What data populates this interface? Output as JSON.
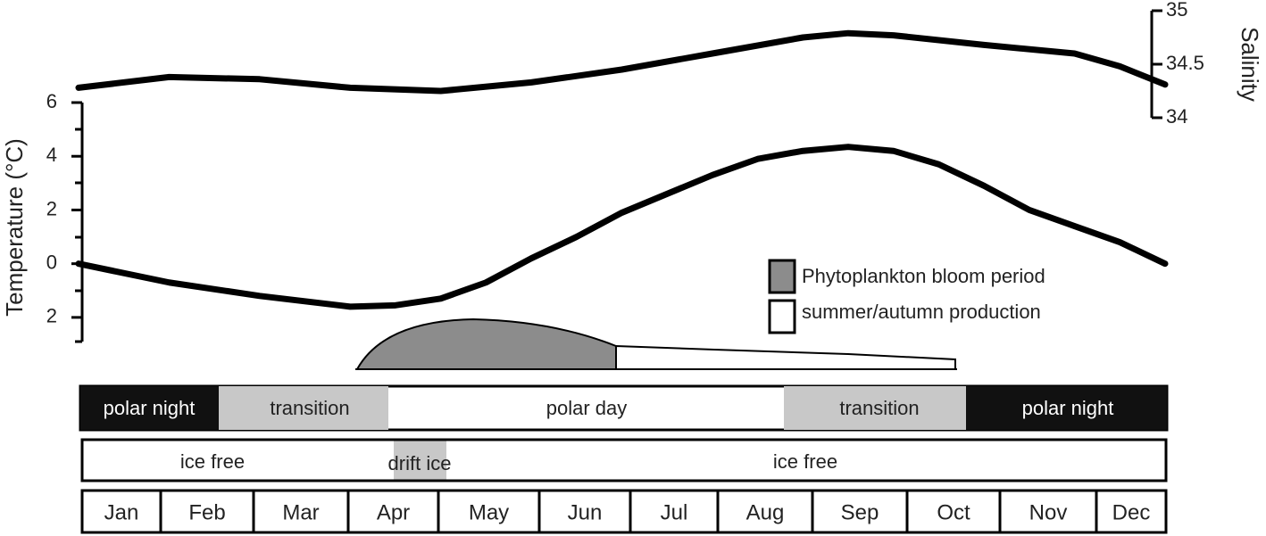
{
  "chart_data": {
    "type": "line",
    "ylabel": "Temperature (°C)",
    "y2label": "Salinity",
    "ylim": [
      -2.9,
      6
    ],
    "yticks": [
      6,
      4,
      2,
      0,
      {
        "value": -2,
        "label": "2"
      }
    ],
    "y2lim": [
      34,
      35
    ],
    "y2ticks": [
      35,
      34.5,
      34
    ],
    "categories": [
      "Jan",
      "Feb",
      "Mar",
      "Apr",
      "May",
      "Jun",
      "Jul",
      "Aug",
      "Sep",
      "Oct",
      "Nov",
      "Dec"
    ],
    "series": [
      {
        "name": "Temperature",
        "color": "#000000",
        "x": [
          0,
          1,
          2,
          3,
          3.5,
          4,
          4.5,
          5,
          5.5,
          6,
          6.5,
          7,
          7.5,
          8,
          8.5,
          9,
          9.5,
          10,
          10.5,
          11,
          11.5,
          12
        ],
        "values": [
          0,
          -0.7,
          -1.2,
          -1.6,
          -1.55,
          -1.3,
          -0.7,
          0.2,
          1.0,
          1.9,
          2.6,
          3.3,
          3.9,
          4.2,
          4.35,
          4.2,
          3.7,
          2.9,
          2.0,
          1.4,
          0.8,
          0
        ]
      },
      {
        "name": "Salinity",
        "color": "#000000",
        "axis": "y2",
        "x": [
          0,
          1,
          2,
          3,
          4,
          5,
          6,
          7,
          8,
          8.5,
          9,
          10,
          11,
          11.5,
          12
        ],
        "values": [
          34.28,
          34.38,
          34.36,
          34.28,
          34.25,
          34.33,
          34.45,
          34.6,
          34.75,
          34.79,
          34.77,
          34.68,
          34.6,
          34.48,
          34.31
        ]
      }
    ],
    "legend": [
      {
        "label": "Phytoplankton bloom period",
        "color": "#8c8c8c"
      },
      {
        "label": "summer/autumn production",
        "color": "#ffffff"
      }
    ],
    "light_periods": [
      "polar night",
      "transition",
      "polar day",
      "transition",
      "polar night"
    ],
    "ice_periods": [
      "ice free",
      "drift ice",
      "ice free"
    ]
  }
}
